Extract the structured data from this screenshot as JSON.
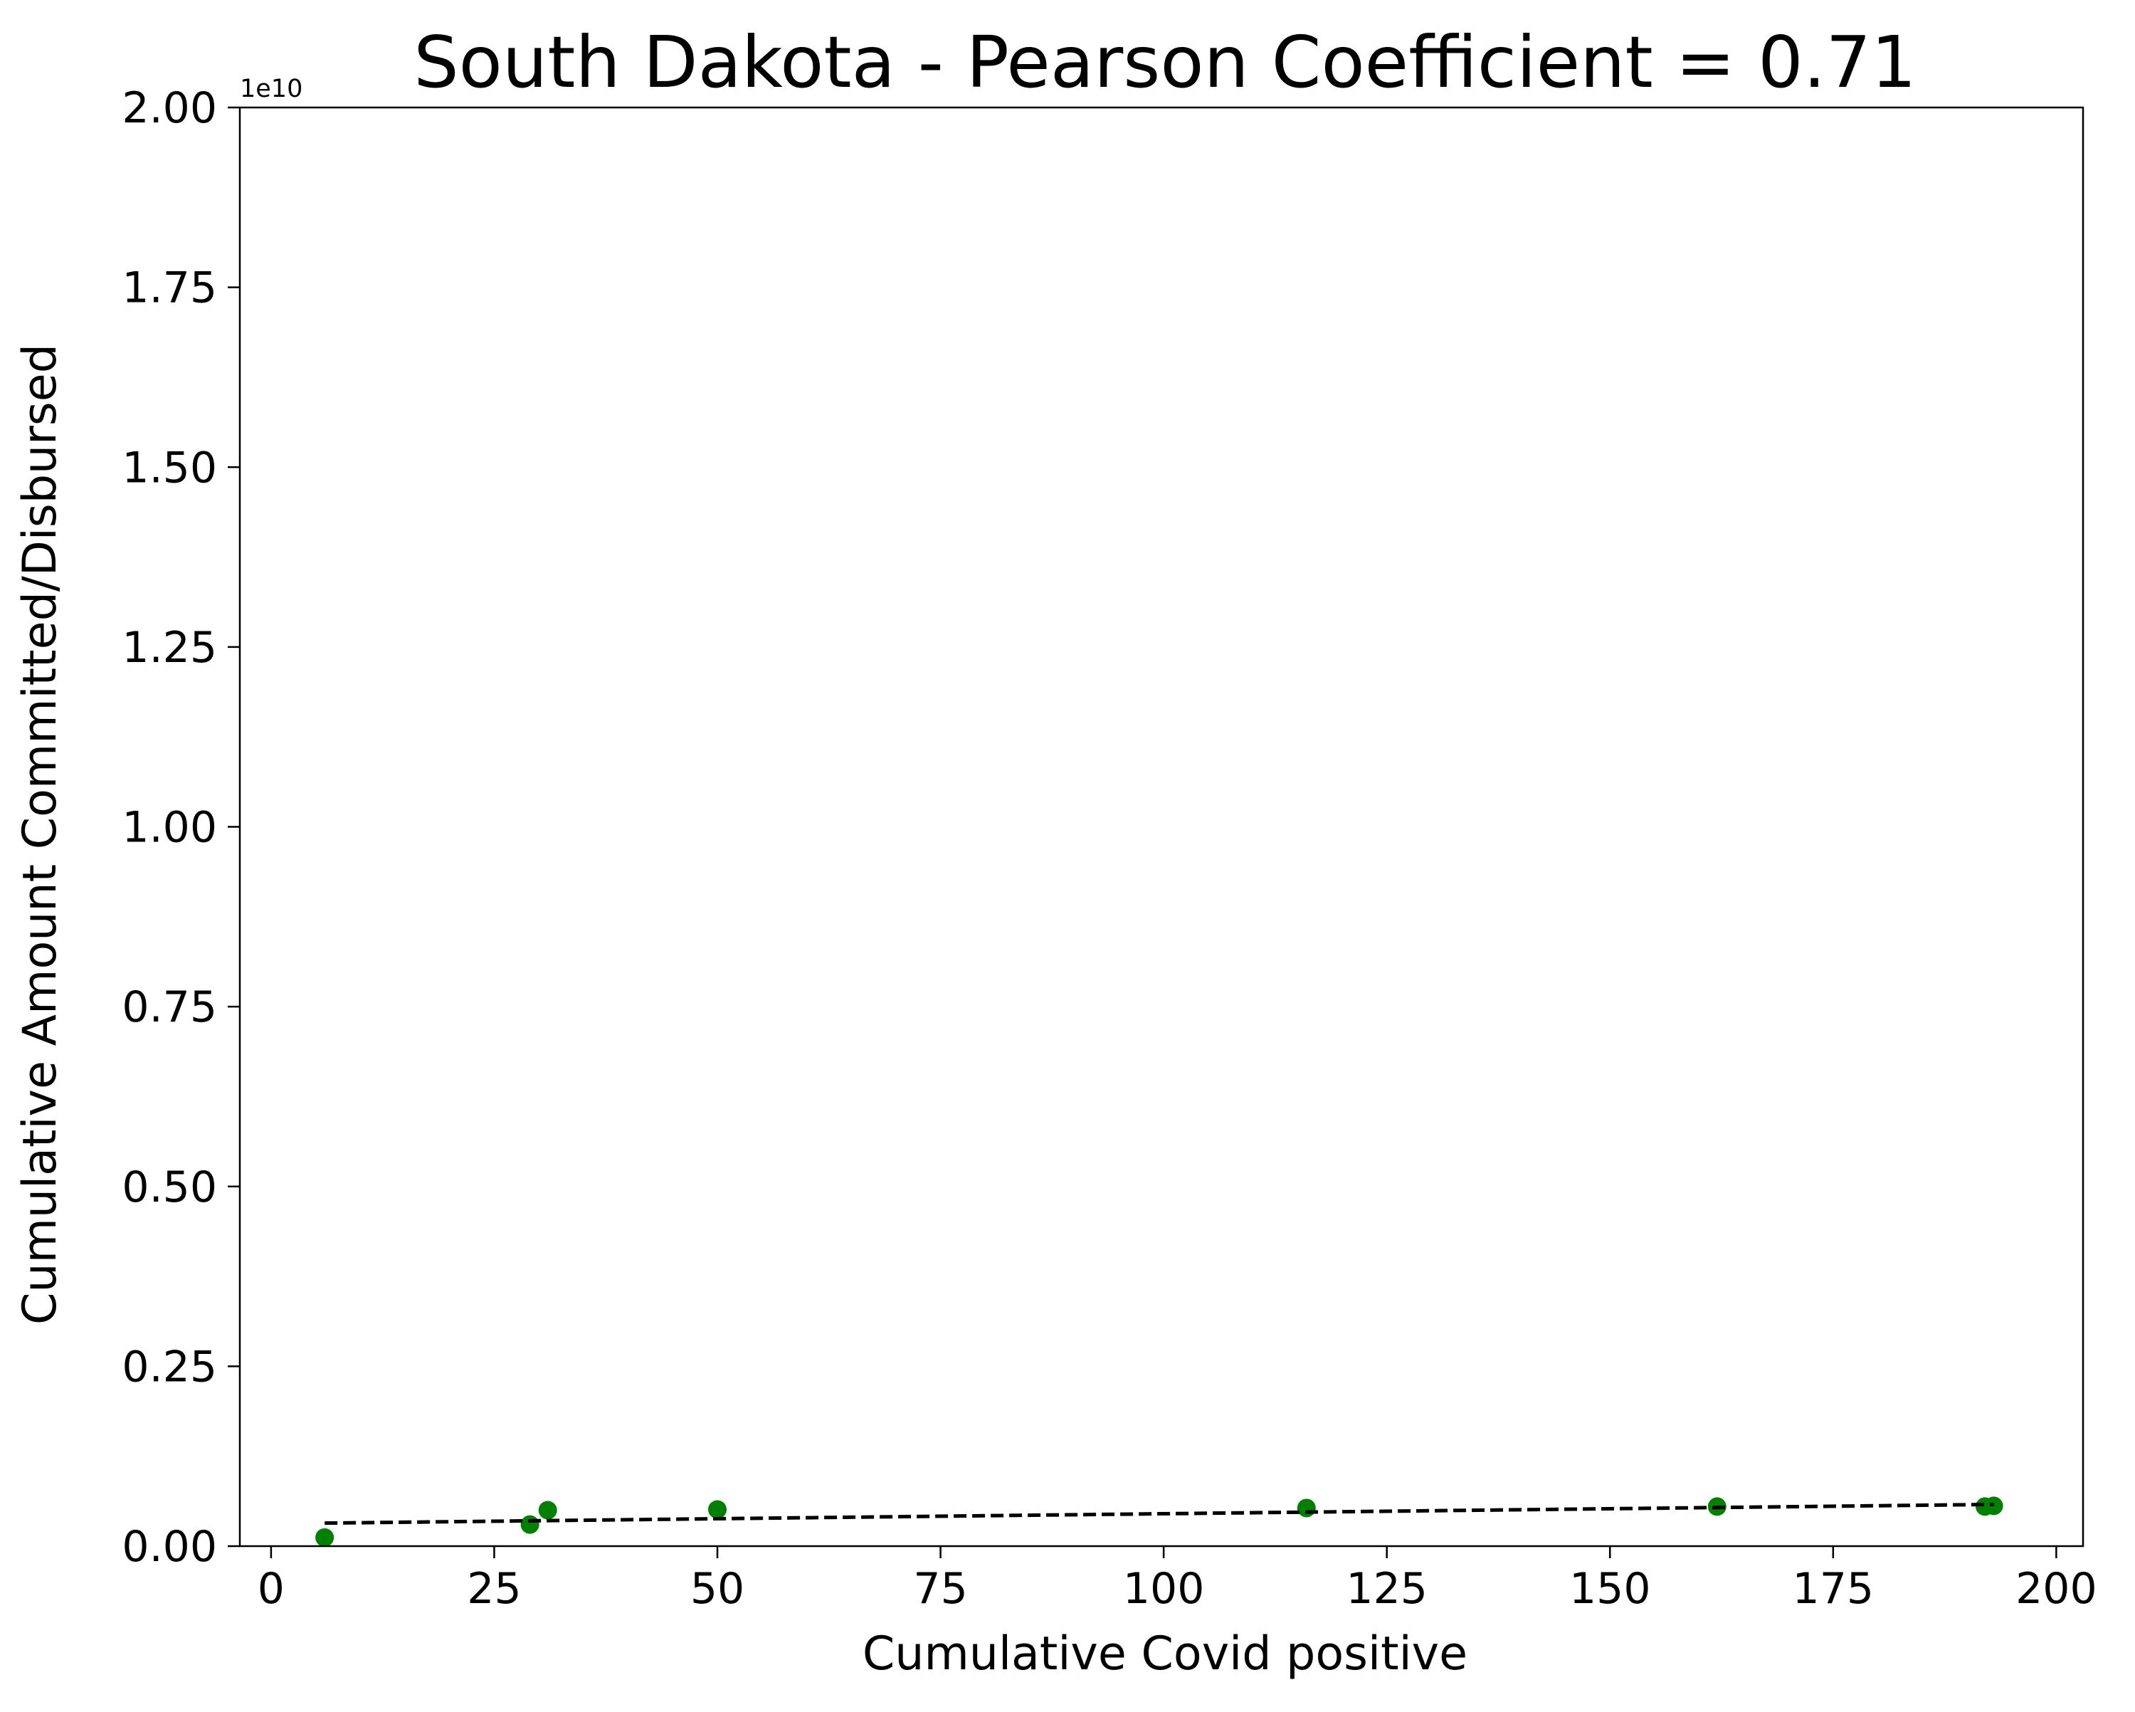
{
  "chart_data": {
    "type": "scatter",
    "title": "South Dakota - Pearson Coefficient = 0.71",
    "xlabel": "Cumulative Covid positive",
    "ylabel": "Cumulative Amount Committed/Disbursed",
    "y_offset_label": "1e10",
    "xlim": [
      -3.5,
      203
    ],
    "ylim": [
      0,
      2.0
    ],
    "x_ticks": [
      0,
      25,
      50,
      75,
      100,
      125,
      150,
      175,
      200
    ],
    "x_tick_labels": [
      "0",
      "25",
      "50",
      "75",
      "100",
      "125",
      "150",
      "175",
      "200"
    ],
    "y_ticks": [
      0,
      0.25,
      0.5,
      0.75,
      1.0,
      1.25,
      1.5,
      1.75,
      2.0
    ],
    "y_tick_labels": [
      "0.00",
      "0.25",
      "0.50",
      "0.75",
      "1.00",
      "1.25",
      "1.50",
      "1.75",
      "2.00"
    ],
    "grid": false,
    "series": [
      {
        "kind": "points",
        "color": "#008000",
        "points": [
          {
            "x": 6,
            "y": 0.012
          },
          {
            "x": 29,
            "y": 0.03
          },
          {
            "x": 31,
            "y": 0.05
          },
          {
            "x": 50,
            "y": 0.051
          },
          {
            "x": 116,
            "y": 0.053
          },
          {
            "x": 162,
            "y": 0.055
          },
          {
            "x": 192,
            "y": 0.055
          },
          {
            "x": 193,
            "y": 0.056
          }
        ]
      },
      {
        "kind": "trendline",
        "color": "#000000",
        "dashed": true,
        "points": [
          {
            "x": 6,
            "y": 0.032
          },
          {
            "x": 193,
            "y": 0.058
          }
        ]
      }
    ]
  }
}
